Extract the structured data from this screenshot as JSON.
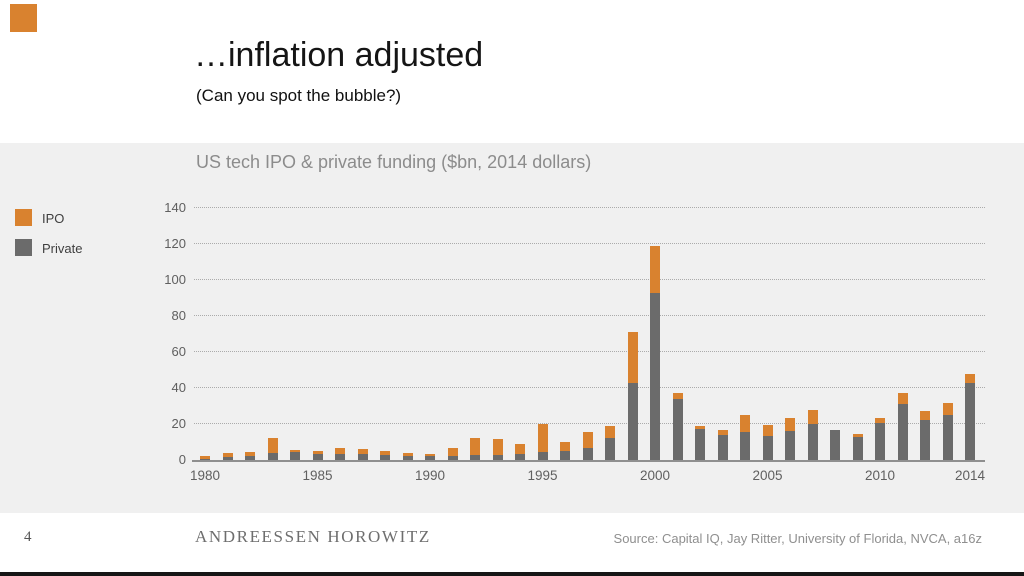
{
  "slide": {
    "title": "…inflation adjusted",
    "subtitle": "(Can you spot the bubble?)",
    "page_number": "4",
    "logo": "ANDREESSEN HOROWITZ",
    "source": "Source: Capital IQ, Jay Ritter, University of Florida, NVCA, a16z"
  },
  "colors": {
    "accent_orange": "#D9822F",
    "bar_gray": "#6B6B6B",
    "panel_bg": "#F0F0F0",
    "grid_dot": "#ABABAB",
    "axis_line": "#8F8F8F",
    "footer_bar": "#161616"
  },
  "chart_data": {
    "type": "bar",
    "stacked": true,
    "title": "US tech IPO & private funding ($bn, 2014 dollars)",
    "xlabel": "",
    "ylabel": "",
    "ylim": [
      0,
      140
    ],
    "yticks": [
      0,
      20,
      40,
      60,
      80,
      100,
      120,
      140
    ],
    "xticks": [
      "1980",
      "1985",
      "1990",
      "1995",
      "2000",
      "2005",
      "2010",
      "2014"
    ],
    "grid": "dotted-horizontal",
    "legend_position": "left",
    "categories": [
      1980,
      1981,
      1982,
      1983,
      1984,
      1985,
      1986,
      1987,
      1988,
      1989,
      1990,
      1991,
      1992,
      1993,
      1994,
      1995,
      1996,
      1997,
      1998,
      1999,
      2000,
      2001,
      2002,
      2003,
      2004,
      2005,
      2006,
      2007,
      2008,
      2009,
      2010,
      2011,
      2012,
      2013,
      2014
    ],
    "series": [
      {
        "name": "IPO",
        "color": "#D9822F",
        "values": [
          1.5,
          2.5,
          2.5,
          8.5,
          1,
          1.5,
          3,
          2.5,
          2,
          1.5,
          1.5,
          4.5,
          9.5,
          8.5,
          5.5,
          15.5,
          5,
          9,
          7,
          28,
          26,
          3,
          2,
          2.5,
          9.5,
          6,
          7.5,
          8,
          0,
          1.5,
          3,
          6.5,
          5,
          6.5,
          5
        ]
      },
      {
        "name": "Private",
        "color": "#6B6B6B",
        "values": [
          0.5,
          1.5,
          2,
          4,
          4.5,
          3.5,
          3.5,
          3.5,
          3,
          2.5,
          2,
          2,
          3,
          3,
          3.5,
          4.5,
          5,
          6.5,
          12,
          43,
          93,
          34,
          17,
          14,
          15.5,
          13.5,
          16,
          20,
          16.5,
          13,
          20.5,
          31,
          22,
          25,
          43
        ]
      }
    ]
  }
}
